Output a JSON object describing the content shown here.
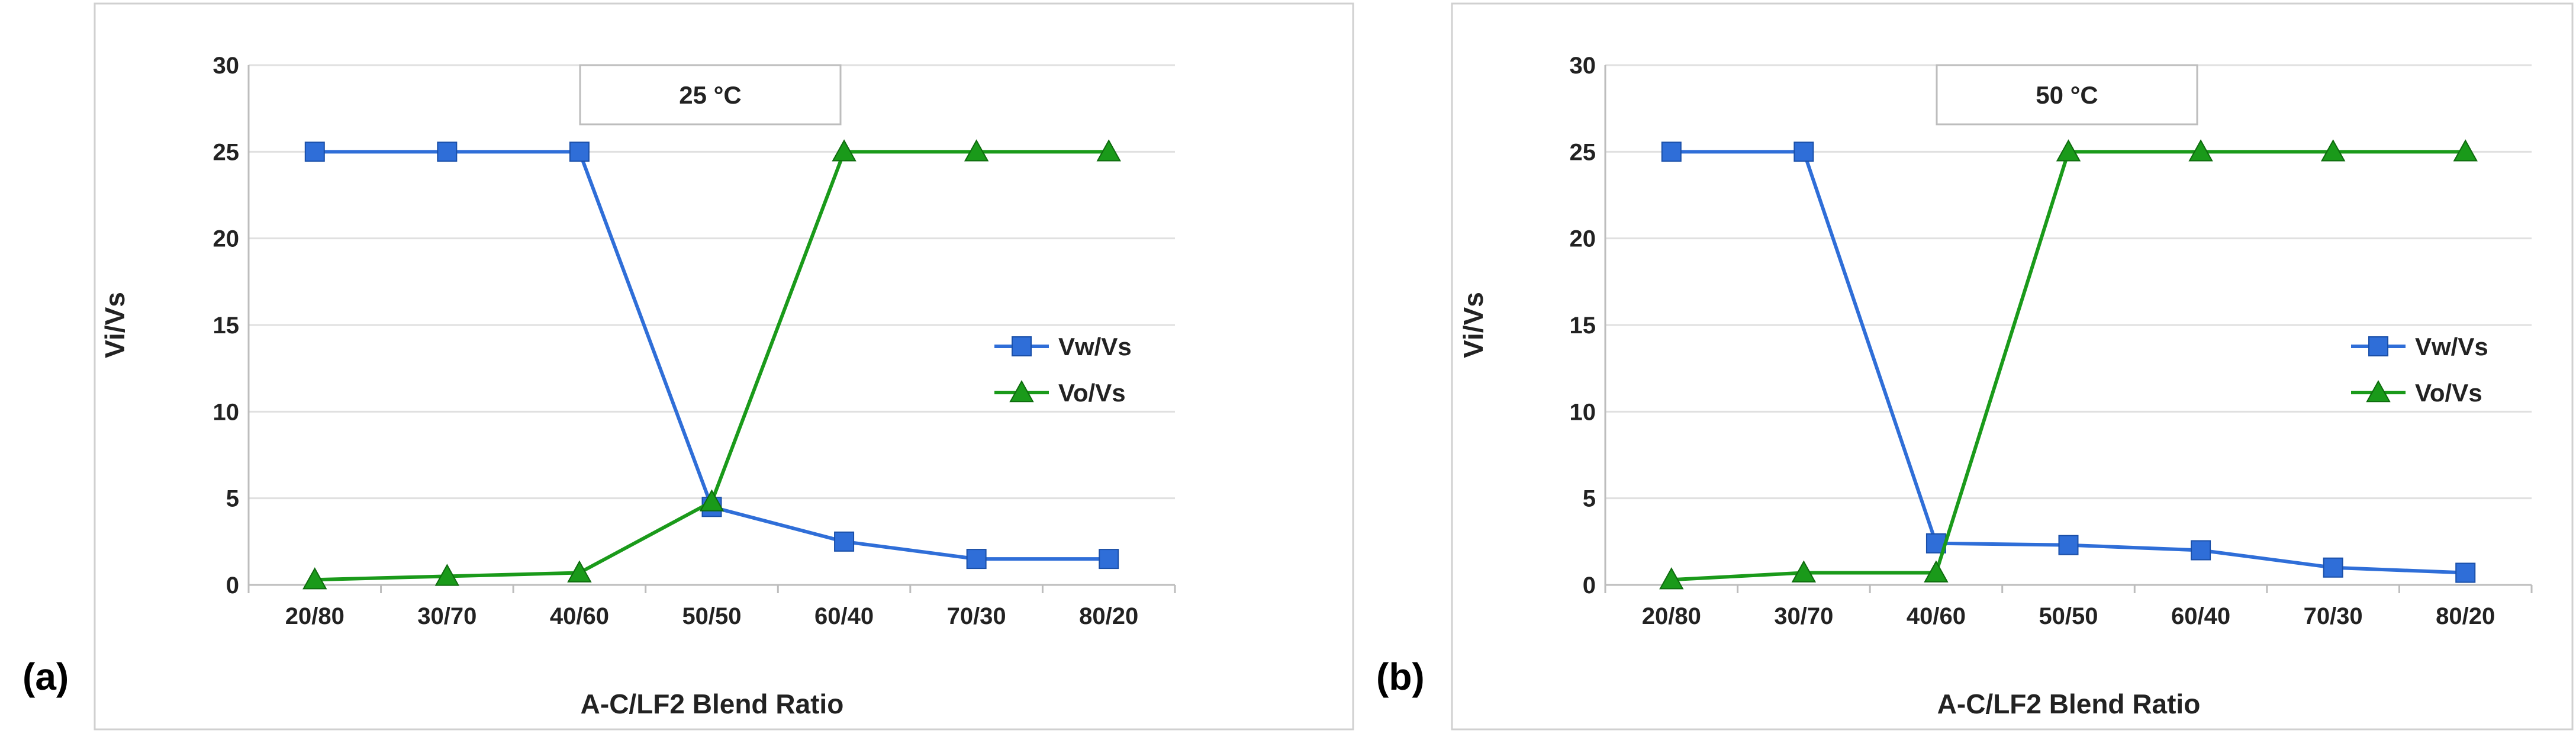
{
  "panels": [
    {
      "label": "(a)",
      "chart_data": {
        "type": "line",
        "annotation": "25 °C",
        "xlabel": "A-C/LF2 Blend Ratio",
        "ylabel": "Vi/Vs",
        "categories": [
          "20/80",
          "30/70",
          "40/60",
          "50/50",
          "60/40",
          "70/30",
          "80/20"
        ],
        "ylim": [
          0,
          30
        ],
        "yticks": [
          0,
          5,
          10,
          15,
          20,
          25,
          30
        ],
        "grid": true,
        "legend_position": "right",
        "series": [
          {
            "name": "Vw/Vs",
            "color": "#2f6ed8",
            "marker": "square",
            "values": [
              25,
              25,
              25,
              4.5,
              2.5,
              1.5,
              1.5
            ]
          },
          {
            "name": "Vo/Vs",
            "color": "#1a9a1a",
            "marker": "triangle",
            "values": [
              0.3,
              0.5,
              0.7,
              4.8,
              25,
              25,
              25
            ]
          }
        ]
      }
    },
    {
      "label": "(b)",
      "chart_data": {
        "type": "line",
        "annotation": "50 °C",
        "xlabel": "A-C/LF2 Blend Ratio",
        "ylabel": "Vi/Vs",
        "categories": [
          "20/80",
          "30/70",
          "40/60",
          "50/50",
          "60/40",
          "70/30",
          "80/20"
        ],
        "ylim": [
          0,
          30
        ],
        "yticks": [
          0,
          5,
          10,
          15,
          20,
          25,
          30
        ],
        "grid": true,
        "legend_position": "right",
        "series": [
          {
            "name": "Vw/Vs",
            "color": "#2f6ed8",
            "marker": "square",
            "values": [
              25,
              25,
              2.4,
              2.3,
              2.0,
              1.0,
              0.7
            ]
          },
          {
            "name": "Vo/Vs",
            "color": "#1a9a1a",
            "marker": "triangle",
            "values": [
              0.3,
              0.7,
              0.7,
              25,
              25,
              25,
              25
            ]
          }
        ]
      }
    }
  ]
}
